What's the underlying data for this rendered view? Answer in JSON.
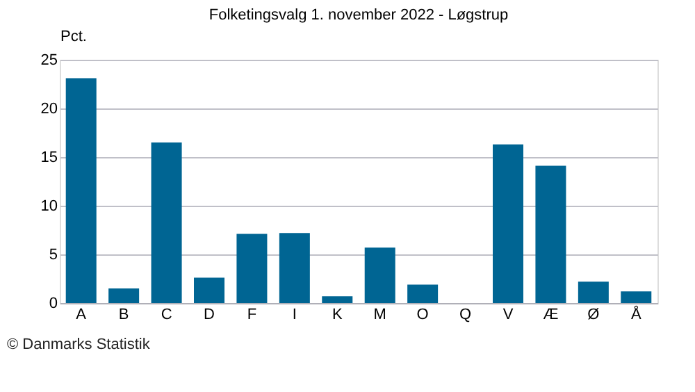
{
  "chart_data": {
    "type": "bar",
    "title": "Folketingsvalg 1. november 2022 - Løgstrup",
    "ylabel": "Pct.",
    "categories": [
      "A",
      "B",
      "C",
      "D",
      "F",
      "I",
      "K",
      "M",
      "O",
      "Q",
      "V",
      "Æ",
      "Ø",
      "Å"
    ],
    "values": [
      23.1,
      1.5,
      16.5,
      2.6,
      7.1,
      7.2,
      0.7,
      5.7,
      1.9,
      0,
      16.3,
      14.1,
      2.2,
      1.2
    ],
    "color": "#006593",
    "ylim": [
      0,
      25
    ],
    "yticks": [
      0,
      5,
      10,
      15,
      20,
      25
    ],
    "grid": "y",
    "annotations": [
      "© Danmarks Statistik"
    ]
  }
}
